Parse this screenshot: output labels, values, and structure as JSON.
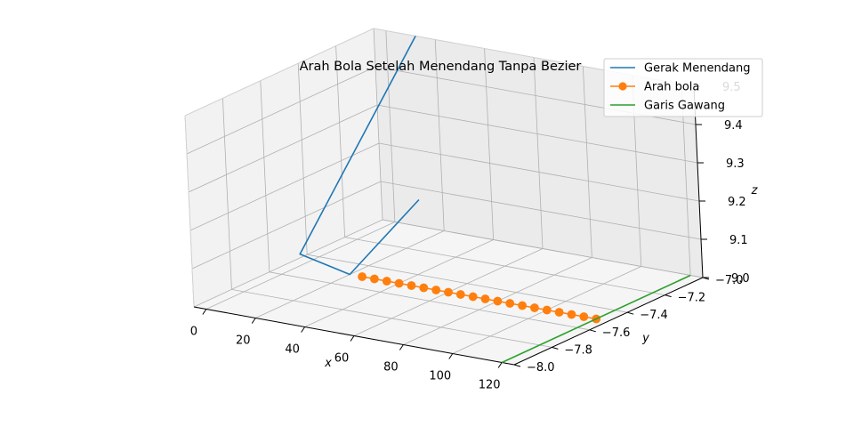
{
  "chart_data": {
    "type": "line",
    "projection": "3d",
    "title": "Arah Bola Setelah Menendang Tanpa Bezier",
    "xlabel": "x",
    "ylabel": "y",
    "zlabel": "z",
    "xlim": [
      -5,
      125
    ],
    "ylim": [
      -8.0,
      -7.0
    ],
    "zlim": [
      9.0,
      9.5
    ],
    "x_ticks": [
      0,
      20,
      40,
      60,
      80,
      100,
      120
    ],
    "y_ticks": [
      -7.0,
      -7.2,
      -7.4,
      -7.6,
      -7.8,
      -8.0
    ],
    "y_tick_labels": [
      "−7.0",
      "−7.2",
      "−7.4",
      "−7.6",
      "−7.8",
      "−8.0"
    ],
    "z_ticks": [
      9.0,
      9.1,
      9.2,
      9.3,
      9.4,
      9.5
    ],
    "z_tick_labels": [
      "9.0",
      "9.1",
      "9.2",
      "9.3",
      "9.4",
      "9.5"
    ],
    "grid": true,
    "legend_position": "top-right",
    "series": [
      {
        "name": "Gerak Menendang",
        "color": "#1f77b4",
        "marker": "none",
        "points": [
          [
            12,
            -7.0,
            9.5
          ],
          [
            0,
            -7.5,
            9.03
          ],
          [
            20,
            -7.5,
            9.0
          ],
          [
            30,
            -7.25,
            9.15
          ]
        ]
      },
      {
        "name": "Arah bola",
        "color": "#ff7f0e",
        "marker": "circle",
        "points": [
          [
            25,
            -7.5,
            9.0
          ],
          [
            30,
            -7.5,
            9.0
          ],
          [
            35,
            -7.5,
            9.0
          ],
          [
            40,
            -7.5,
            9.0
          ],
          [
            45,
            -7.5,
            9.0
          ],
          [
            50,
            -7.5,
            9.0
          ],
          [
            55,
            -7.5,
            9.0
          ],
          [
            60,
            -7.5,
            9.0
          ],
          [
            65,
            -7.5,
            9.0
          ],
          [
            70,
            -7.5,
            9.0
          ],
          [
            75,
            -7.5,
            9.0
          ],
          [
            80,
            -7.5,
            9.0
          ],
          [
            85,
            -7.5,
            9.0
          ],
          [
            90,
            -7.5,
            9.0
          ],
          [
            95,
            -7.5,
            9.0
          ],
          [
            100,
            -7.5,
            9.0
          ],
          [
            105,
            -7.5,
            9.0
          ],
          [
            110,
            -7.5,
            9.0
          ],
          [
            115,
            -7.5,
            9.0
          ],
          [
            120,
            -7.5,
            9.0
          ]
        ]
      },
      {
        "name": "Garis Gawang",
        "color": "#2ca02c",
        "marker": "none",
        "points": [
          [
            120,
            -8.0,
            9.0
          ],
          [
            120,
            -7.0,
            9.0
          ]
        ]
      }
    ]
  }
}
